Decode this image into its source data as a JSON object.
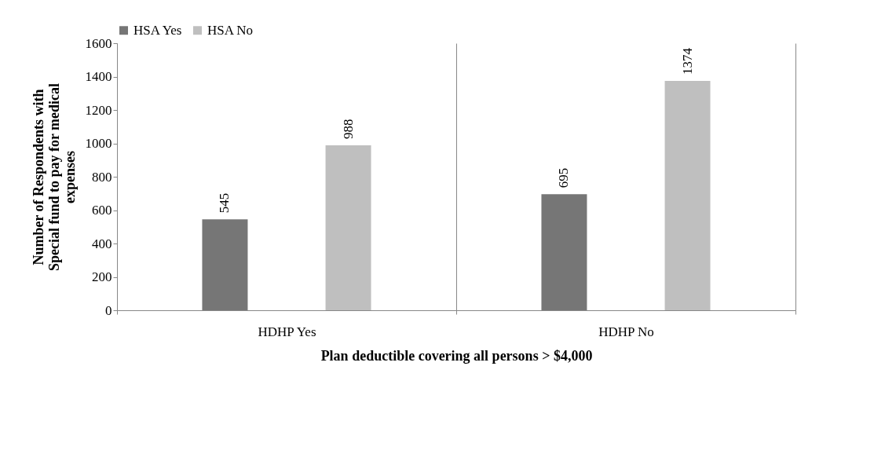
{
  "chart_data": {
    "type": "bar",
    "xlabel": "Plan deductible covering all persons > $4,000",
    "ylabel": "Number of Respondents with Special fund to pay for medical expenses",
    "categories": [
      "HDHP Yes",
      "HDHP No"
    ],
    "series": [
      {
        "name": "HSA Yes",
        "color": "#767676",
        "values": [
          545,
          695
        ]
      },
      {
        "name": "HSA No",
        "color": "#bfbfbf",
        "values": [
          988,
          1374
        ]
      }
    ],
    "ylim": [
      0,
      1600
    ],
    "yticks": [
      0,
      200,
      400,
      600,
      800,
      1000,
      1200,
      1400,
      1600
    ],
    "grid": "x",
    "legend": "top",
    "data_labels": true
  }
}
